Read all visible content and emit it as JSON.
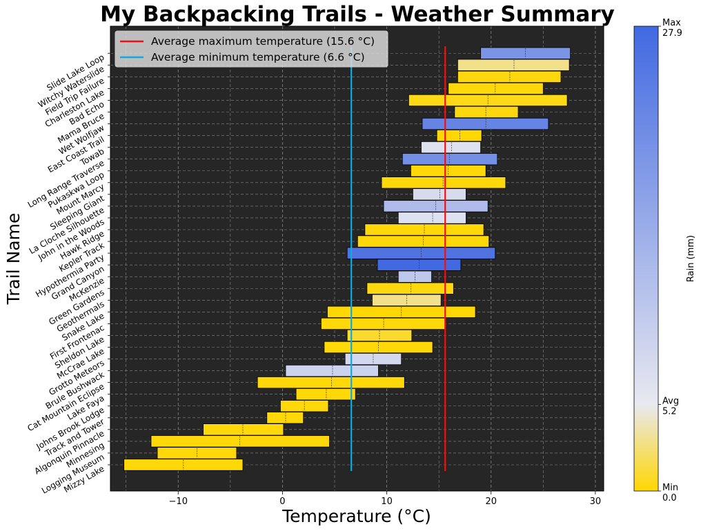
{
  "chart_data": {
    "type": "bar",
    "orientation": "horizontal-range",
    "title": "My Backpacking Trails - Weather Summary",
    "xlabel": "Temperature (°C)",
    "ylabel": "Trail Name",
    "xlim": [
      -16.5,
      30.8
    ],
    "xticks": [
      -10,
      0,
      10,
      20,
      30
    ],
    "xtick_labels": [
      "−10",
      "0",
      "10",
      "20",
      "30"
    ],
    "grid": true,
    "legend_position": "upper-left",
    "avg_max": {
      "label": "Average maximum temperature (15.6 °C)",
      "value": 15.6,
      "color": "#ee1111"
    },
    "avg_min": {
      "label": "Average minimum temperature (6.6 °C)",
      "value": 6.6,
      "color": "#11aadd"
    },
    "trails": [
      {
        "name": "Slide Lake Loop",
        "min": 19.0,
        "max": 27.6,
        "avg": 23.3,
        "rain": 20.0
      },
      {
        "name": "Witchy Waterslide",
        "min": 16.8,
        "max": 27.5,
        "avg": 22.2,
        "rain": 3.0
      },
      {
        "name": "Field Trip Failure",
        "min": 16.8,
        "max": 26.7,
        "avg": 21.8,
        "rain": 0.3
      },
      {
        "name": "Charleston Lake",
        "min": 15.9,
        "max": 25.0,
        "avg": 20.4,
        "rain": 0.2
      },
      {
        "name": "Bad Echo",
        "min": 12.1,
        "max": 27.3,
        "avg": 19.7,
        "rain": 0.5
      },
      {
        "name": "Mama Bruce",
        "min": 16.5,
        "max": 22.6,
        "avg": 19.5,
        "rain": 0.3
      },
      {
        "name": "Wet Wolfjaw",
        "min": 13.4,
        "max": 25.5,
        "avg": 19.5,
        "rain": 23.0
      },
      {
        "name": "East Coast Trail",
        "min": 14.8,
        "max": 19.1,
        "avg": 17.0,
        "rain": 0.1
      },
      {
        "name": "Towab",
        "min": 13.3,
        "max": 19.0,
        "avg": 16.2,
        "rain": 6.5
      },
      {
        "name": "Long Range Traverse",
        "min": 11.5,
        "max": 20.6,
        "avg": 16.0,
        "rain": 21.0
      },
      {
        "name": "Pukaskwa Loop",
        "min": 12.3,
        "max": 19.5,
        "avg": 15.9,
        "rain": 0.2
      },
      {
        "name": "Mount Marcy",
        "min": 9.5,
        "max": 21.4,
        "avg": 15.4,
        "rain": 0.2
      },
      {
        "name": "Sleeping Giant",
        "min": 12.5,
        "max": 17.6,
        "avg": 15.1,
        "rain": 7.5
      },
      {
        "name": "La Cloche Silhouette",
        "min": 9.7,
        "max": 19.7,
        "avg": 14.7,
        "rain": 13.0
      },
      {
        "name": "John in the Woods",
        "min": 11.1,
        "max": 17.6,
        "avg": 14.4,
        "rain": 6.5
      },
      {
        "name": "Hawk Ridge",
        "min": 7.9,
        "max": 19.3,
        "avg": 13.6,
        "rain": 0.2
      },
      {
        "name": "Kepler Track",
        "min": 7.2,
        "max": 19.8,
        "avg": 13.5,
        "rain": 0.2
      },
      {
        "name": "Hypothermia Party",
        "min": 6.2,
        "max": 20.4,
        "avg": 13.3,
        "rain": 26.0
      },
      {
        "name": "Grand Canyon",
        "min": 9.1,
        "max": 17.1,
        "avg": 13.1,
        "rain": 27.9
      },
      {
        "name": "McKenzie",
        "min": 11.1,
        "max": 14.3,
        "avg": 12.7,
        "rain": 11.0
      },
      {
        "name": "Green Gardens",
        "min": 8.1,
        "max": 16.4,
        "avg": 12.3,
        "rain": 0.3
      },
      {
        "name": "Geothermals",
        "min": 8.6,
        "max": 15.2,
        "avg": 11.9,
        "rain": 3.0
      },
      {
        "name": "Snake Lake",
        "min": 4.3,
        "max": 18.5,
        "avg": 11.4,
        "rain": 0.1
      },
      {
        "name": "First Frontenac",
        "min": 3.7,
        "max": 15.6,
        "avg": 9.7,
        "rain": 0.2
      },
      {
        "name": "Sheldon Lake",
        "min": 6.2,
        "max": 12.4,
        "avg": 9.3,
        "rain": 1.0
      },
      {
        "name": "McCrae Lake",
        "min": 4.0,
        "max": 14.4,
        "avg": 9.2,
        "rain": 0.2
      },
      {
        "name": "Grotto Meteors",
        "min": 6.0,
        "max": 11.4,
        "avg": 8.7,
        "rain": 8.0
      },
      {
        "name": "Brule Bushwack",
        "min": 0.3,
        "max": 9.2,
        "avg": 4.8,
        "rain": 9.0
      },
      {
        "name": "Cat Mountain Eclipse",
        "min": -2.4,
        "max": 11.7,
        "avg": 4.7,
        "rain": 0.2
      },
      {
        "name": "Lake Faya",
        "min": 1.3,
        "max": 7.0,
        "avg": 4.2,
        "rain": 0.2
      },
      {
        "name": "Johns Brook Lodge",
        "min": -0.2,
        "max": 4.4,
        "avg": 2.1,
        "rain": 0.2
      },
      {
        "name": "Track and Tower",
        "min": -1.5,
        "max": 2.0,
        "avg": 0.3,
        "rain": 0.2
      },
      {
        "name": "Algonquin Pinnacle",
        "min": -7.6,
        "max": 0.1,
        "avg": -3.8,
        "rain": 0.2
      },
      {
        "name": "Minnesing",
        "min": -12.6,
        "max": 4.5,
        "avg": -4.1,
        "rain": 0.2
      },
      {
        "name": "Logging Museum",
        "min": -12.0,
        "max": -4.4,
        "avg": -8.2,
        "rain": 0.2
      },
      {
        "name": "Mizzy Lake",
        "min": -15.2,
        "max": -3.8,
        "avg": -9.5,
        "rain": 0.2
      }
    ],
    "colorbar": {
      "label": "Rain (mm)",
      "min": 0.0,
      "avg": 5.2,
      "max": 27.9,
      "min_label": "Min",
      "min_value": "0.0",
      "avg_label": "Avg",
      "avg_value": "5.2",
      "max_label": "Max",
      "max_value": "27.9",
      "colors": {
        "min": "#ffd700",
        "avg": "#e8e8f0",
        "max": "#4169e1"
      }
    },
    "colors": {
      "plot_background": "#262626",
      "grid": "#8a8a8a",
      "bar_edge": "#000000"
    }
  }
}
